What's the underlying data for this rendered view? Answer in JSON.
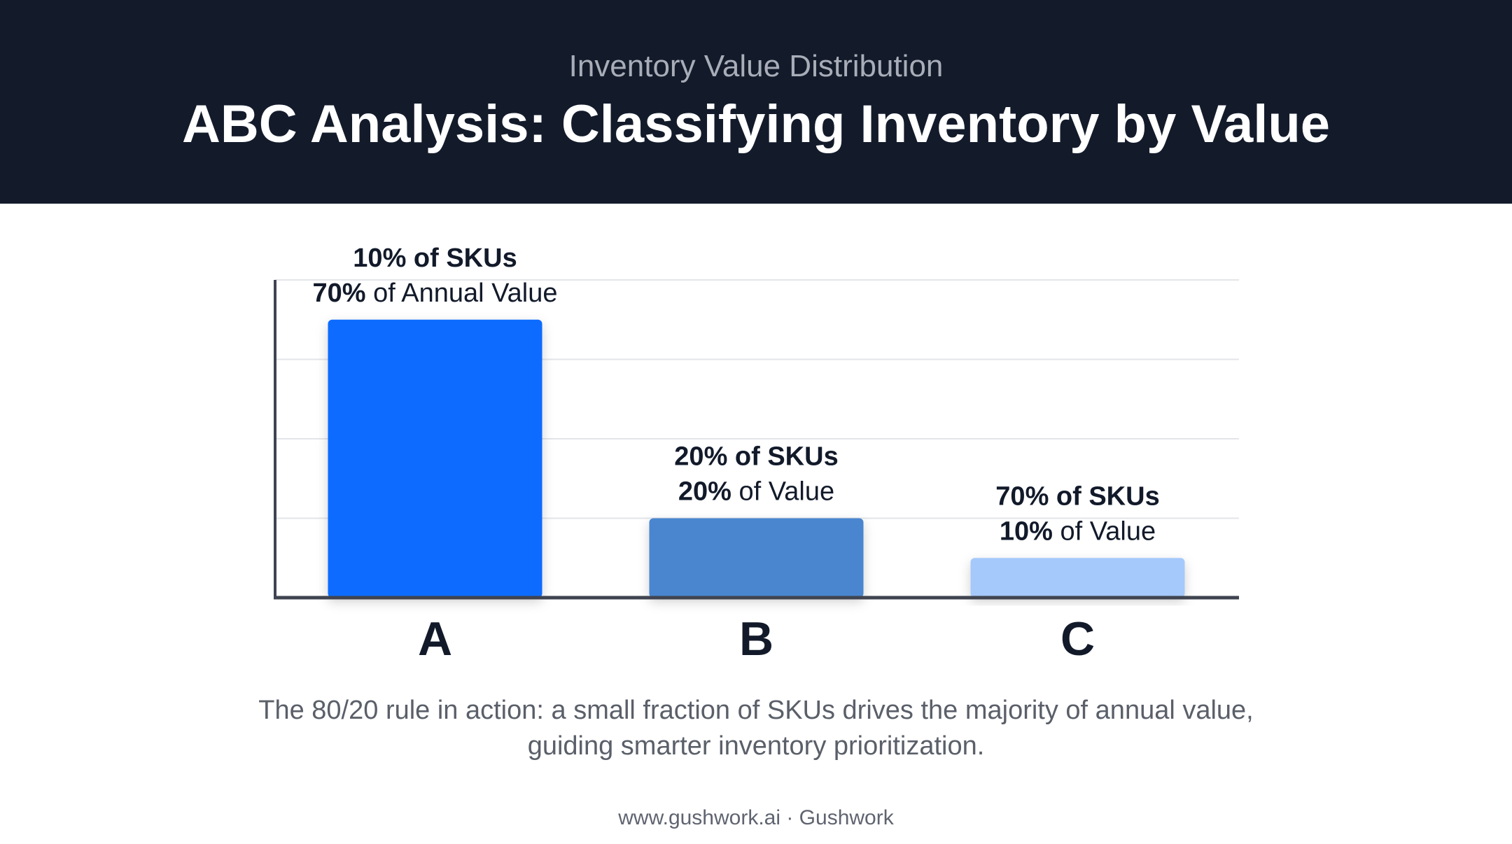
{
  "header": {
    "eyebrow": "Inventory Value Distribution",
    "title": "ABC Analysis: Classifying Inventory by Value"
  },
  "chart_data": {
    "type": "bar",
    "title": "ABC Analysis: Classifying Inventory by Value",
    "subtitle": "Inventory Value Distribution",
    "categories": [
      "A",
      "B",
      "C"
    ],
    "values": [
      70,
      20,
      10
    ],
    "sku_share": [
      10,
      20,
      70
    ],
    "ylim": [
      0,
      80
    ],
    "grid": true,
    "colors": [
      "#0a6cff",
      "#4a86cf",
      "#a6c9fb"
    ],
    "annotations": [
      {
        "category": "A",
        "line1": "10% of SKUs",
        "line2_bold": "70%",
        "line2_rest": " of Annual Value"
      },
      {
        "category": "B",
        "line1": "20% of SKUs",
        "line2_bold": "20%",
        "line2_rest": " of Value"
      },
      {
        "category": "C",
        "line1": "70% of SKUs",
        "line2_bold": "10%",
        "line2_rest": " of Value"
      }
    ]
  },
  "caption": "The 80/20 rule in action: a small fraction of SKUs drives the majority of annual value, guiding smarter inventory prioritization.",
  "footer": "www.gushwork.ai · Gushwork"
}
